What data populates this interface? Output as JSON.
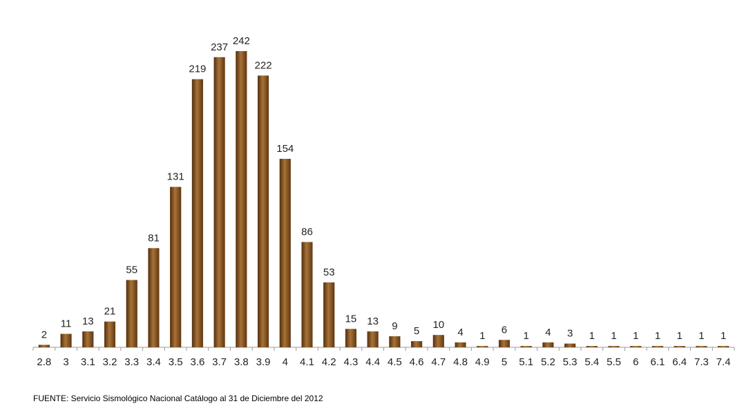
{
  "chart_data": {
    "type": "bar",
    "categories": [
      "2.8",
      "3",
      "3.1",
      "3.2",
      "3.3",
      "3.4",
      "3.5",
      "3.6",
      "3.7",
      "3.8",
      "3.9",
      "4",
      "4.1",
      "4.2",
      "4.3",
      "4.4",
      "4.5",
      "4.6",
      "4.7",
      "4.8",
      "4.9",
      "5",
      "5.1",
      "5.2",
      "5.3",
      "5.4",
      "5.5",
      "6",
      "6.1",
      "6.4",
      "7.3",
      "7.4"
    ],
    "values": [
      2,
      11,
      13,
      21,
      55,
      81,
      131,
      219,
      237,
      242,
      222,
      154,
      86,
      53,
      15,
      13,
      9,
      5,
      10,
      4,
      1,
      6,
      1,
      4,
      3,
      1,
      1,
      1,
      1,
      1,
      1,
      1
    ],
    "color": "#7a4a1c",
    "note": "FUENTE: Servicio Sismológico Nacional Catálogo al 31 de Diciembre del 2012"
  }
}
